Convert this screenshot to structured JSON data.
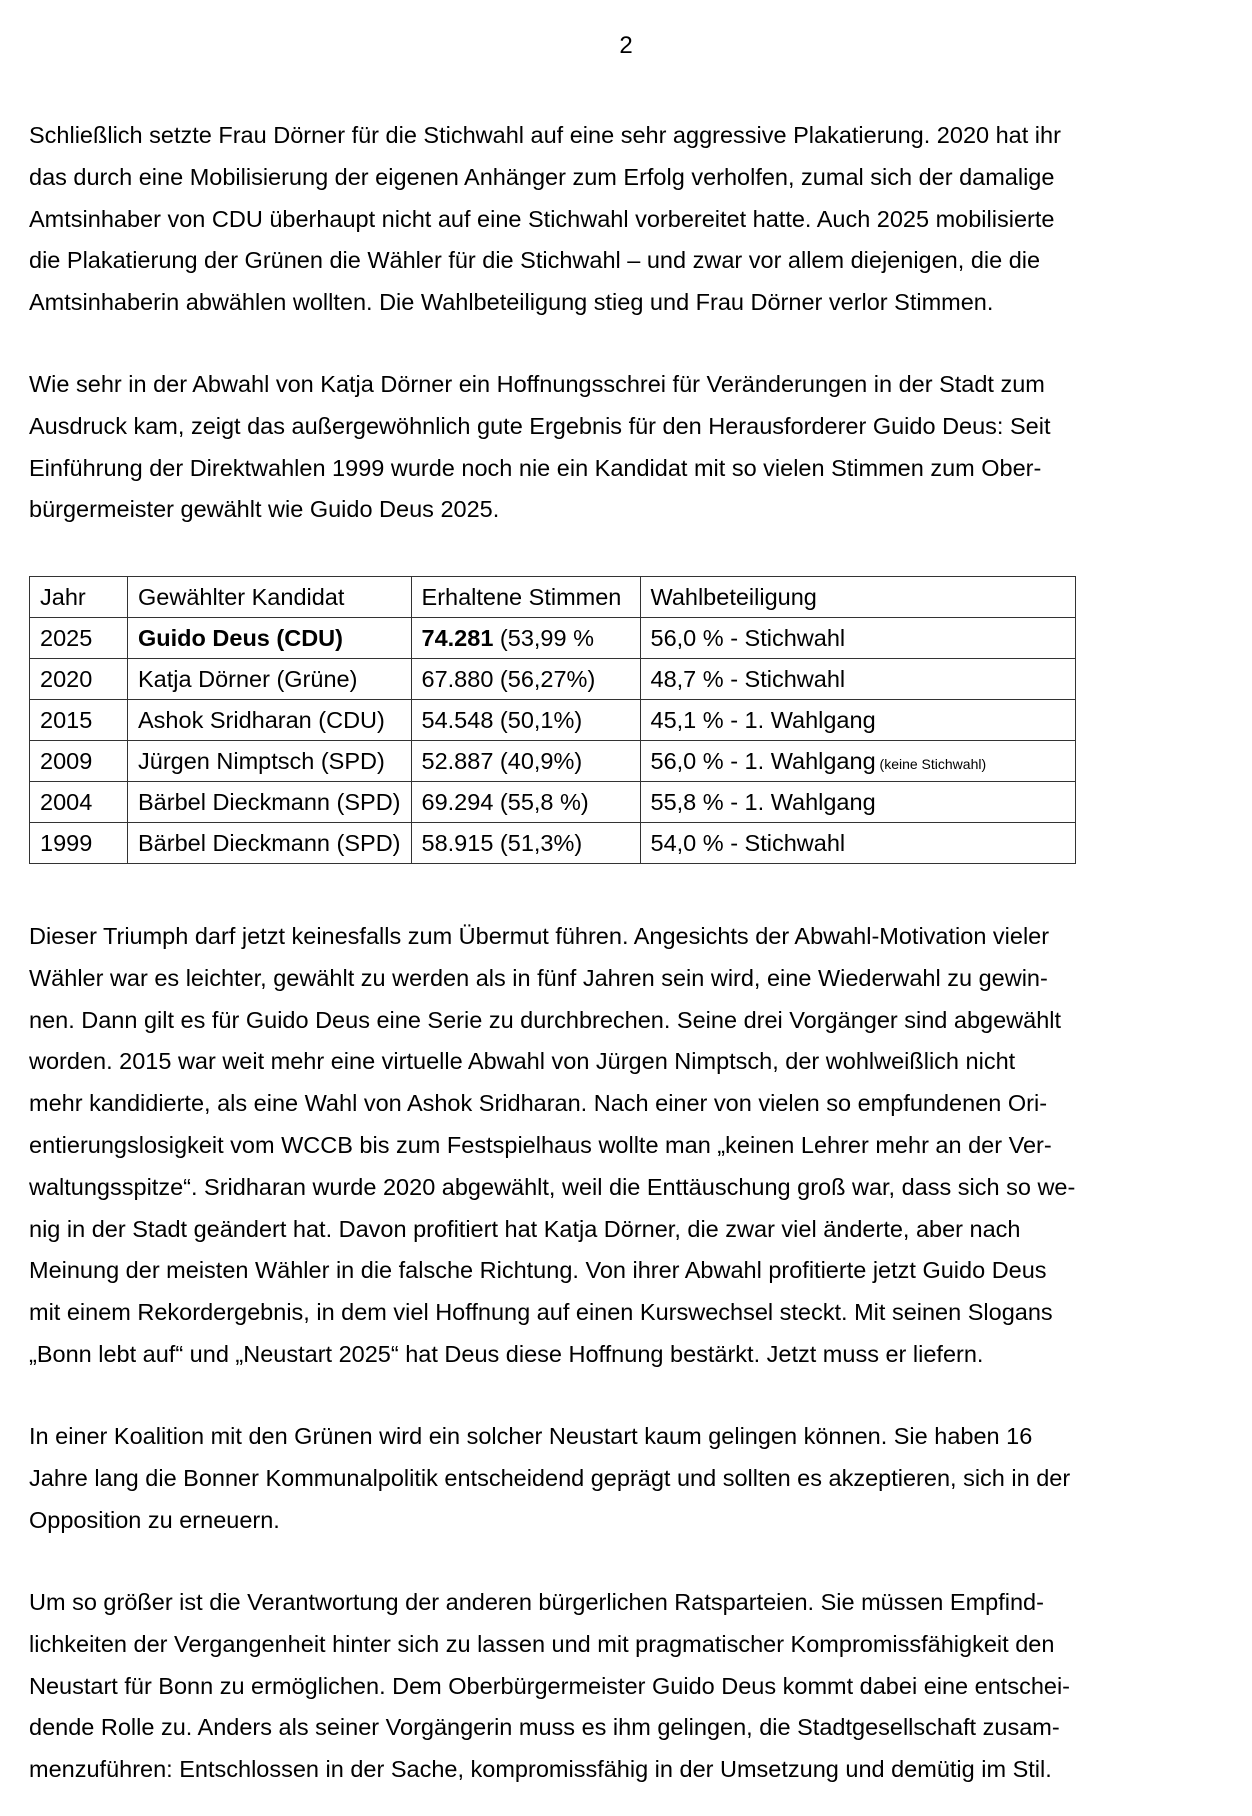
{
  "page_number": "2",
  "paragraphs_top": [
    [
      "Schließlich setzte Frau Dörner für die Stichwahl auf eine sehr aggressive Plakatierung. 2020 hat ihr",
      "das durch eine Mobilisierung der eigenen Anhänger zum Erfolg verholfen, zumal sich der damalige",
      "Amtsinhaber von CDU überhaupt nicht auf eine Stichwahl vorbereitet hatte. Auch 2025 mobilisierte",
      "die Plakatierung der Grünen die Wähler für die Stichwahl – und zwar vor allem diejenigen, die die",
      "Amtsinhaberin abwählen wollten. Die Wahlbeteiligung stieg und Frau Dörner verlor Stimmen."
    ],
    [
      "Wie sehr in der Abwahl von Katja Dörner ein Hoffnungsschrei für Veränderungen in der Stadt zum",
      "Ausdruck kam, zeigt das außergewöhnlich gute Ergebnis für den Herausforderer Guido Deus: Seit",
      "Einführung der Direktwahlen 1999 wurde noch nie ein Kandidat mit so vielen Stimmen zum Ober-",
      "bürgermeister gewählt wie Guido Deus 2025."
    ]
  ],
  "table": {
    "headers": [
      "Jahr",
      "Gewählter Kandidat",
      "Erhaltene Stimmen",
      "Wahlbeteiligung"
    ],
    "rows": [
      {
        "year": "2025",
        "candidate_bold": "Guido Deus (CDU)",
        "candidate": "",
        "votes_bold": "74.281",
        "votes": " (53,99 %",
        "turnout": "56,0 % - Stichwahl",
        "note": ""
      },
      {
        "year": "2020",
        "candidate_bold": "",
        "candidate": "Katja Dörner (Grüne)",
        "votes_bold": "",
        "votes": "67.880 (56,27%)",
        "turnout": "48,7 % - Stichwahl",
        "note": ""
      },
      {
        "year": "2015",
        "candidate_bold": "",
        "candidate": "Ashok Sridharan (CDU)",
        "votes_bold": "",
        "votes": "54.548 (50,1%)",
        "turnout": "45,1 % - 1. Wahlgang",
        "note": ""
      },
      {
        "year": "2009",
        "candidate_bold": "",
        "candidate": "Jürgen Nimptsch (SPD)",
        "votes_bold": "",
        "votes": "52.887 (40,9%)",
        "turnout": "56,0 % - 1. Wahlgang",
        "note": " (keine Stichwahl)"
      },
      {
        "year": "2004",
        "candidate_bold": "",
        "candidate": "Bärbel Dieckmann (SPD)",
        "votes_bold": "",
        "votes": "69.294 (55,8 %)",
        "turnout": "55,8 % - 1. Wahlgang",
        "note": ""
      },
      {
        "year": "1999",
        "candidate_bold": "",
        "candidate": "Bärbel Dieckmann (SPD)",
        "votes_bold": "",
        "votes": "58.915 (51,3%)",
        "turnout": "54,0 % - Stichwahl",
        "note": ""
      }
    ]
  },
  "paragraphs_bottom": [
    [
      "Dieser Triumph darf jetzt keinesfalls zum Übermut führen. Angesichts der Abwahl-Motivation vieler",
      "Wähler war es leichter, gewählt zu werden als in fünf Jahren sein wird, eine Wiederwahl zu gewin-",
      "nen. Dann gilt es für Guido Deus eine Serie zu durchbrechen. Seine drei Vorgänger sind abgewählt",
      "worden. 2015 war weit mehr eine virtuelle Abwahl von Jürgen Nimptsch, der wohlweißlich nicht",
      "mehr kandidierte, als eine Wahl von Ashok Sridharan. Nach einer von vielen so empfundenen Ori-",
      "entierungslosigkeit vom WCCB bis zum Festspielhaus wollte man „keinen Lehrer mehr an der Ver-",
      "waltungsspitze“. Sridharan wurde 2020 abgewählt, weil die Enttäuschung groß war, dass sich so we-",
      "nig in der Stadt geändert hat. Davon profitiert hat Katja Dörner, die zwar viel änderte, aber nach",
      "Meinung der meisten Wähler in die falsche Richtung. Von ihrer Abwahl profitierte jetzt Guido Deus",
      "mit einem Rekordergebnis, in dem viel Hoffnung auf einen Kurswechsel steckt. Mit seinen Slogans",
      "„Bonn lebt auf“ und „Neustart 2025“ hat Deus diese Hoffnung bestärkt. Jetzt muss er liefern."
    ],
    [
      "In einer Koalition mit den Grünen wird ein solcher Neustart kaum gelingen können. Sie haben 16",
      "Jahre lang die Bonner Kommunalpolitik entscheidend geprägt und sollten es akzeptieren, sich in der",
      "Opposition zu erneuern."
    ],
    [
      "Um so größer ist die Verantwortung der anderen bürgerlichen Ratsparteien. Sie müssen Empfind-",
      "lichkeiten der Vergangenheit hinter sich zu lassen und mit pragmatischer Kompromissfähigkeit den",
      "Neustart für Bonn zu ermöglichen. Dem Oberbürgermeister Guido Deus kommt dabei eine entschei-",
      "dende Rolle zu. Anders als seiner Vorgängerin muss es ihm gelingen, die Stadtgesellschaft zusam-",
      "menzuführen: Entschlossen in der Sache, kompromissfähig in der Umsetzung und demütig im Stil."
    ]
  ]
}
